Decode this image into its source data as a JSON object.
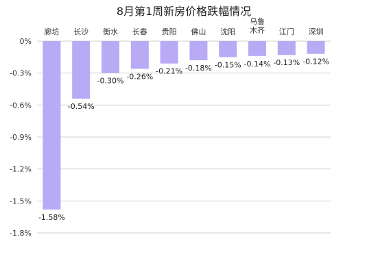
{
  "chart_data": {
    "type": "bar",
    "title": "8月第1周新房价格跌幅情况",
    "xlabel": "",
    "ylabel": "",
    "categories": [
      "廊坊",
      "长沙",
      "衡水",
      "长春",
      "贵阳",
      "佛山",
      "沈阳",
      "乌鲁木齐",
      "江门",
      "深圳"
    ],
    "values": [
      -1.58,
      -0.54,
      -0.3,
      -0.26,
      -0.21,
      -0.18,
      -0.15,
      -0.14,
      -0.13,
      -0.12
    ],
    "data_labels": [
      "-1.58%",
      "-0.54%",
      "-0.30%",
      "-0.26%",
      "-0.21%",
      "-0.18%",
      "-0.15%",
      "-0.14%",
      "-0.13%",
      "-0.12%"
    ],
    "y_ticks": [
      0,
      -0.3,
      -0.6,
      -0.9,
      -1.2,
      -1.5,
      -1.8
    ],
    "y_tick_labels": [
      "0%",
      "-0.3%",
      "-0.6%",
      "-0.9%",
      "-1.2%",
      "-1.5%",
      "-1.8%"
    ],
    "ylim": [
      -1.8,
      0
    ],
    "grid": true,
    "category_axis_position": "top",
    "bar_color": "#b8aaf5",
    "grid_color": "#d0d0d0"
  }
}
